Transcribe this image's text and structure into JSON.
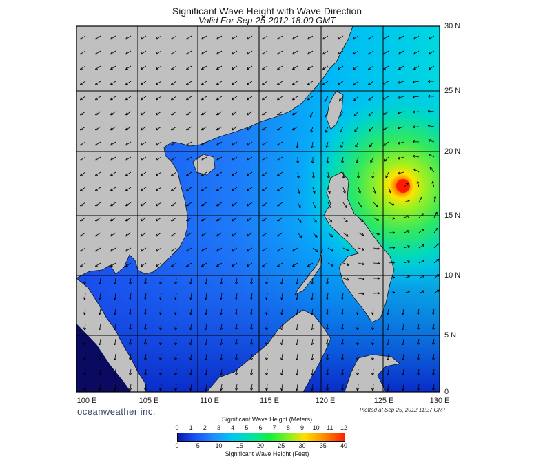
{
  "title": "Significant Wave Height with Wave Direction",
  "subtitle": "Valid For Sep-25-2012 18:00 GMT",
  "lat_labels": [
    "30 N",
    "25 N",
    "20 N",
    "15 N",
    "10 N",
    "5 N",
    "0"
  ],
  "lon_labels": [
    "100 E",
    "105 E",
    "110 E",
    "115 E",
    "120 E",
    "125 E",
    "130 E"
  ],
  "brand": "oceanweather inc.",
  "plotted": "Plotted at Sep 25, 2012 11:27 GMT",
  "colorbar": {
    "meters_title": "Significant Wave Height (Meters)",
    "feet_title": "Significant Wave Height (Feet)",
    "meters_ticks": [
      "0",
      "1",
      "2",
      "3",
      "4",
      "5",
      "6",
      "7",
      "8",
      "9",
      "10",
      "11",
      "12"
    ],
    "feet_ticks": [
      "0",
      "5",
      "10",
      "15",
      "20",
      "25",
      "30",
      "35",
      "40"
    ]
  },
  "map_data": {
    "extent": {
      "lon": [
        100,
        130
      ],
      "lat": [
        0,
        30
      ]
    },
    "storm_center": {
      "lon": 126.8,
      "lat": 17.6,
      "max_height_m": 11
    },
    "colors": {
      "land": "#c0c0c0",
      "deep_low": "#0c0ca0",
      "low": "#1850f5",
      "mid": "#00c0ff",
      "high": "#10f040",
      "peak": "#ff2000"
    }
  }
}
